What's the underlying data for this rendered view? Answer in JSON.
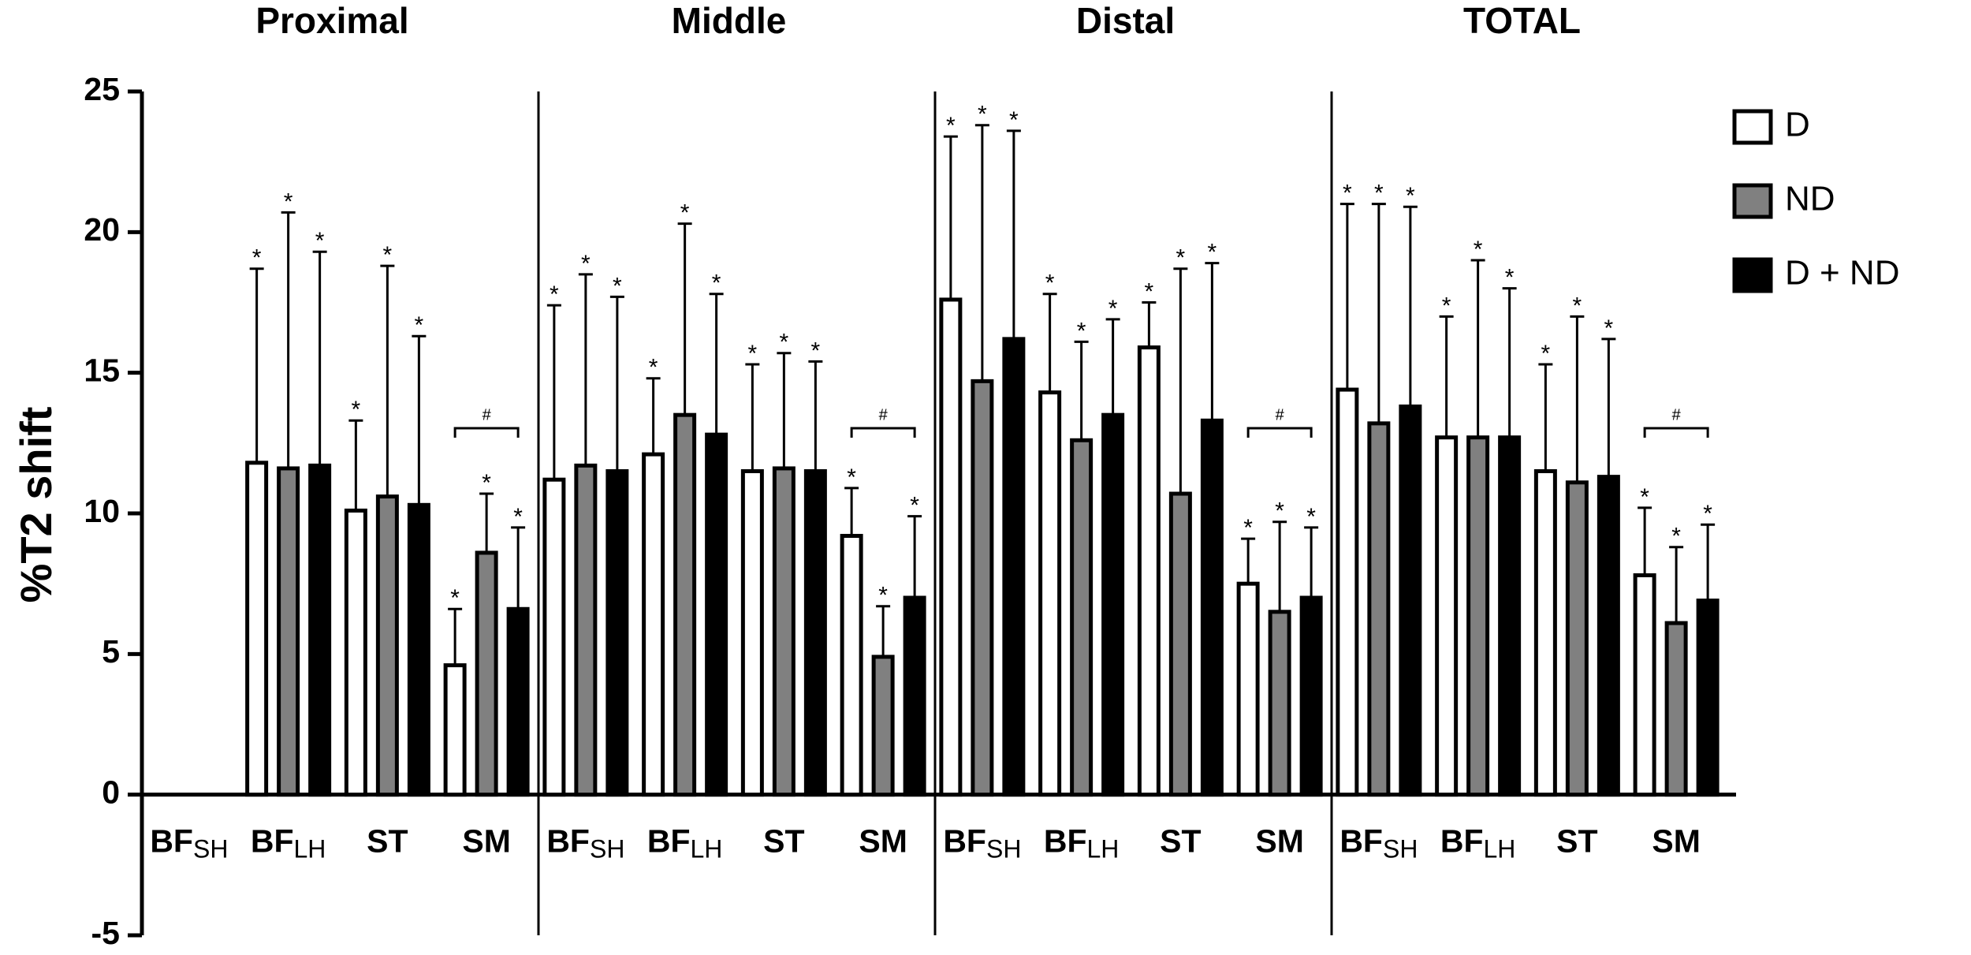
{
  "chart_data": {
    "type": "bar",
    "ylabel": "%T2 shift",
    "ylim": [
      -5,
      25
    ],
    "yticks": [
      -5,
      0,
      5,
      10,
      15,
      20,
      25
    ],
    "legend": "right",
    "categories": [
      {
        "main": "BF",
        "sub": "SH"
      },
      {
        "main": "BF",
        "sub": "LH"
      },
      {
        "main": "ST",
        "sub": null
      },
      {
        "main": "SM",
        "sub": null
      }
    ],
    "series": [
      {
        "name": "D",
        "color": "#ffffff"
      },
      {
        "name": "ND",
        "color": "#808080"
      },
      {
        "name": "D + ND",
        "color": "#000000"
      }
    ],
    "panels": [
      {
        "title": "Proximal",
        "values": [
          [
            null,
            11.8,
            10.1,
            4.6
          ],
          [
            null,
            11.6,
            10.6,
            8.6
          ],
          [
            null,
            11.7,
            10.3,
            6.6
          ]
        ],
        "errors": [
          [
            null,
            6.9,
            3.2,
            2.0
          ],
          [
            null,
            9.1,
            8.2,
            2.1
          ],
          [
            null,
            7.6,
            6.0,
            2.9
          ]
        ],
        "markers": [
          [
            null,
            "*",
            "*",
            "*"
          ],
          [
            null,
            "*",
            "*",
            "*"
          ],
          [
            null,
            "*",
            "*",
            "*"
          ]
        ],
        "bracket": "#"
      },
      {
        "title": "Middle",
        "values": [
          [
            11.2,
            12.1,
            11.5,
            9.2
          ],
          [
            11.7,
            13.5,
            11.6,
            4.9
          ],
          [
            11.5,
            12.8,
            11.5,
            7.0
          ]
        ],
        "errors": [
          [
            6.2,
            2.7,
            3.8,
            1.7
          ],
          [
            6.8,
            6.8,
            4.1,
            1.8
          ],
          [
            6.2,
            5.0,
            3.9,
            2.9
          ]
        ],
        "markers": [
          [
            "*",
            "*",
            "*",
            "*"
          ],
          [
            "*",
            "*",
            "*",
            "*"
          ],
          [
            "*",
            "*",
            "*",
            "*"
          ]
        ],
        "bracket": "#"
      },
      {
        "title": "Distal",
        "values": [
          [
            17.6,
            14.3,
            15.9,
            7.5
          ],
          [
            14.7,
            12.6,
            10.7,
            6.5
          ],
          [
            16.2,
            13.5,
            13.3,
            7.0
          ]
        ],
        "errors": [
          [
            5.8,
            3.5,
            1.6,
            1.6
          ],
          [
            9.1,
            3.5,
            8.0,
            3.2
          ],
          [
            7.4,
            3.4,
            5.6,
            2.5
          ]
        ],
        "markers": [
          [
            "*",
            "*",
            "*",
            "*"
          ],
          [
            "*",
            "*",
            "*",
            "*"
          ],
          [
            "*",
            "*",
            "*",
            "*"
          ]
        ],
        "bracket": "#"
      },
      {
        "title": "TOTAL",
        "values": [
          [
            14.4,
            12.7,
            11.5,
            7.8
          ],
          [
            13.2,
            12.7,
            11.1,
            6.1
          ],
          [
            13.8,
            12.7,
            11.3,
            6.9
          ]
        ],
        "errors": [
          [
            6.6,
            4.3,
            3.8,
            2.4
          ],
          [
            7.8,
            6.3,
            5.9,
            2.7
          ],
          [
            7.1,
            5.3,
            4.9,
            2.7
          ]
        ],
        "markers": [
          [
            "*",
            "*",
            "*",
            "*"
          ],
          [
            "*",
            "*",
            "*",
            "*"
          ],
          [
            "*",
            "*",
            "*",
            "*"
          ]
        ],
        "bracket": "#"
      }
    ]
  }
}
